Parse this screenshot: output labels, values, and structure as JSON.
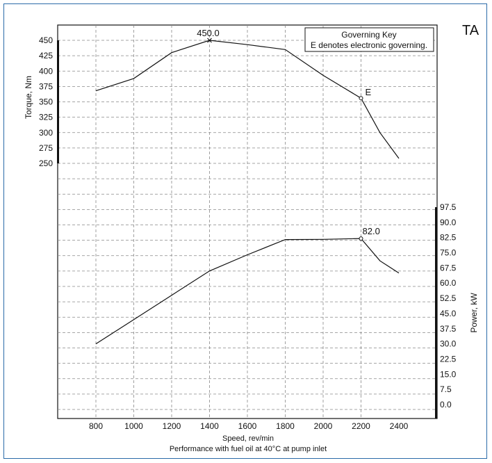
{
  "corner_code": "TA",
  "key_box": {
    "title": "Governing Key",
    "text": "E denotes electronic governing."
  },
  "footer": {
    "xlabel": "Speed, rev/min",
    "note": "Performance with fuel oil at 40°C at pump inlet"
  },
  "chart_data": {
    "type": "line",
    "x_ticks": [
      800,
      1000,
      1200,
      1400,
      1600,
      1800,
      2000,
      2200,
      2400
    ],
    "xlim": [
      600,
      2400
    ],
    "torque": {
      "ylabel": "Torque, Nm",
      "ylim": [
        250,
        450
      ],
      "ticks": [
        250,
        275,
        300,
        325,
        350,
        375,
        400,
        425,
        450
      ],
      "x": [
        800,
        1000,
        1200,
        1400,
        1600,
        1800,
        2000,
        2200,
        2300,
        2400
      ],
      "y": [
        368,
        388,
        430,
        450,
        443,
        435,
        393,
        356,
        300,
        258
      ],
      "peak": {
        "x": 1400,
        "y": 450,
        "label": "450.0"
      },
      "governing": {
        "x": 2200,
        "y": 356,
        "label": "E"
      }
    },
    "power": {
      "ylabel": "Power, kW",
      "ylim": [
        0,
        97.5
      ],
      "ticks": [
        "0.0",
        "7.5",
        "15.0",
        "22.5",
        "30.0",
        "37.5",
        "45.0",
        "52.5",
        "60.0",
        "67.5",
        "75.0",
        "82.5",
        "90.0",
        "97.5"
      ],
      "x": [
        800,
        1000,
        1200,
        1400,
        1600,
        1800,
        2000,
        2200,
        2300,
        2400
      ],
      "y": [
        30,
        42,
        54,
        66,
        74,
        81.5,
        81.6,
        82,
        71,
        65
      ],
      "rated": {
        "x": 2200,
        "y": 82.0,
        "label": "82.0"
      }
    }
  }
}
